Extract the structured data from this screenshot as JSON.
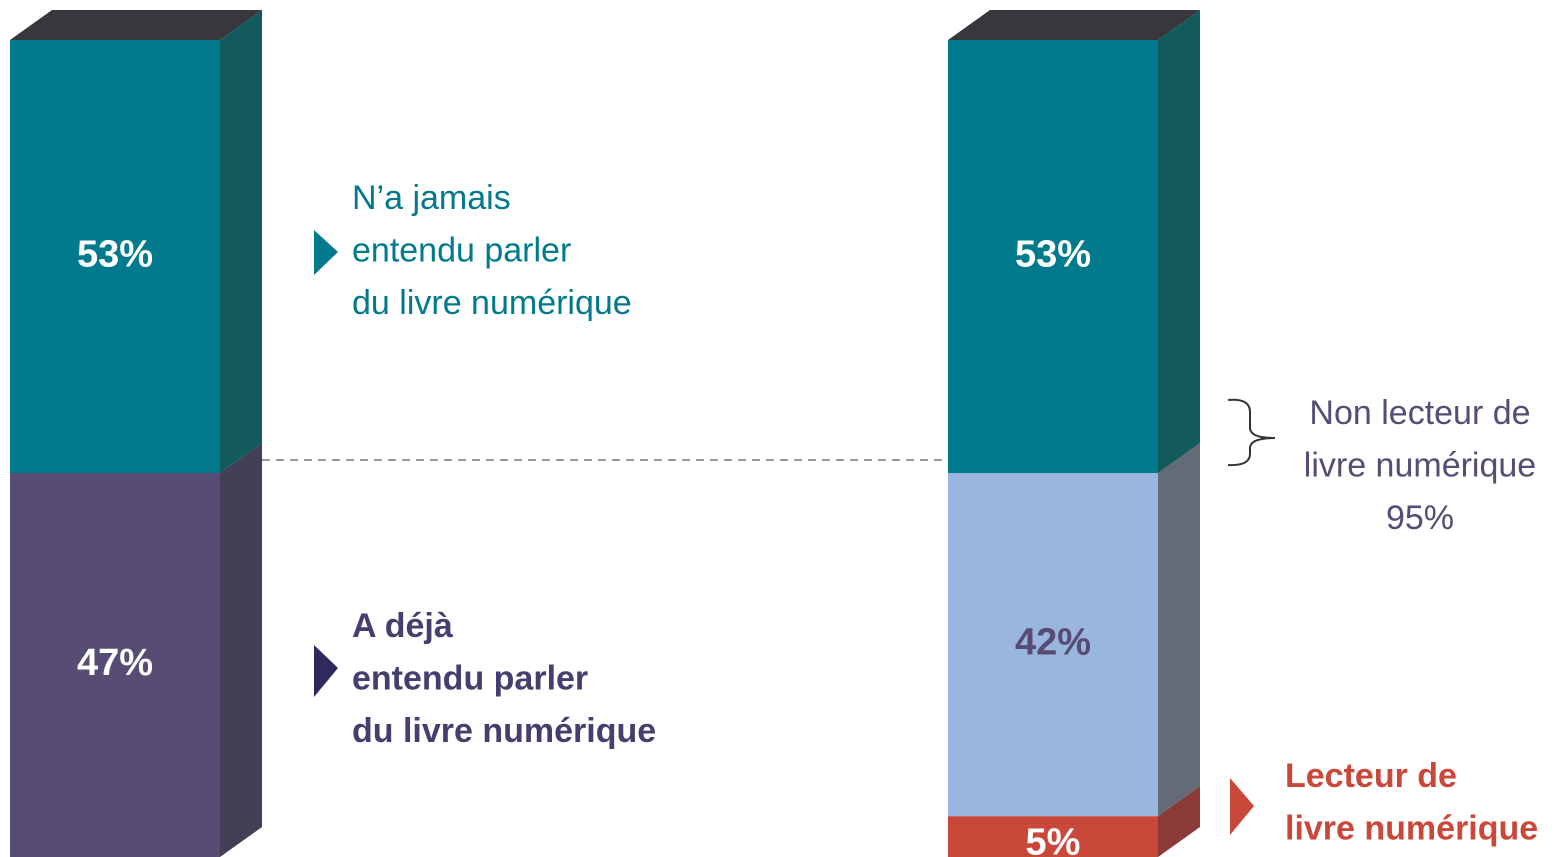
{
  "chart_data": {
    "type": "bar",
    "stacked": true,
    "categories": [
      null,
      null
    ],
    "ylim": [
      0,
      100
    ],
    "top_color": "#37373d",
    "series": [
      {
        "color": "#c9483a",
        "side_color": "#8a3a38",
        "label_color": "#ffffff",
        "values": [
          null,
          5
        ],
        "value_labels": [
          null,
          "5%"
        ]
      },
      {
        "color": "#564c74",
        "side_color": "#433f56",
        "label_color": "#ffffff",
        "values": [
          47,
          null
        ],
        "value_labels": [
          "47%",
          null
        ]
      },
      {
        "color": "#98b6de",
        "side_color": "#656b76",
        "label_color": "#564c74",
        "values": [
          null,
          42
        ],
        "value_labels": [
          null,
          "42%"
        ]
      },
      {
        "color": "#007a8c",
        "side_color": "#125a5c",
        "label_color": "#ffffff",
        "values": [
          53,
          53
        ],
        "value_labels": [
          "53%",
          "53%"
        ]
      }
    ],
    "annotations": [
      {
        "lines": [
          "N’a jamais",
          "entendu parler",
          "du livre numérique"
        ],
        "color": "#007a8c",
        "bold": false
      },
      {
        "lines": [
          "A déjà",
          "entendu parler",
          "du livre numérique"
        ],
        "color": "#433f6e",
        "bold": true
      },
      {
        "lines": [
          "Non lecteur de",
          "livre numérique",
          "95%"
        ],
        "color": "#564c74",
        "bold": false
      },
      {
        "lines": [
          "Lecteur de",
          "livre numérique"
        ],
        "color": "#c9483a",
        "bold": true
      }
    ]
  }
}
